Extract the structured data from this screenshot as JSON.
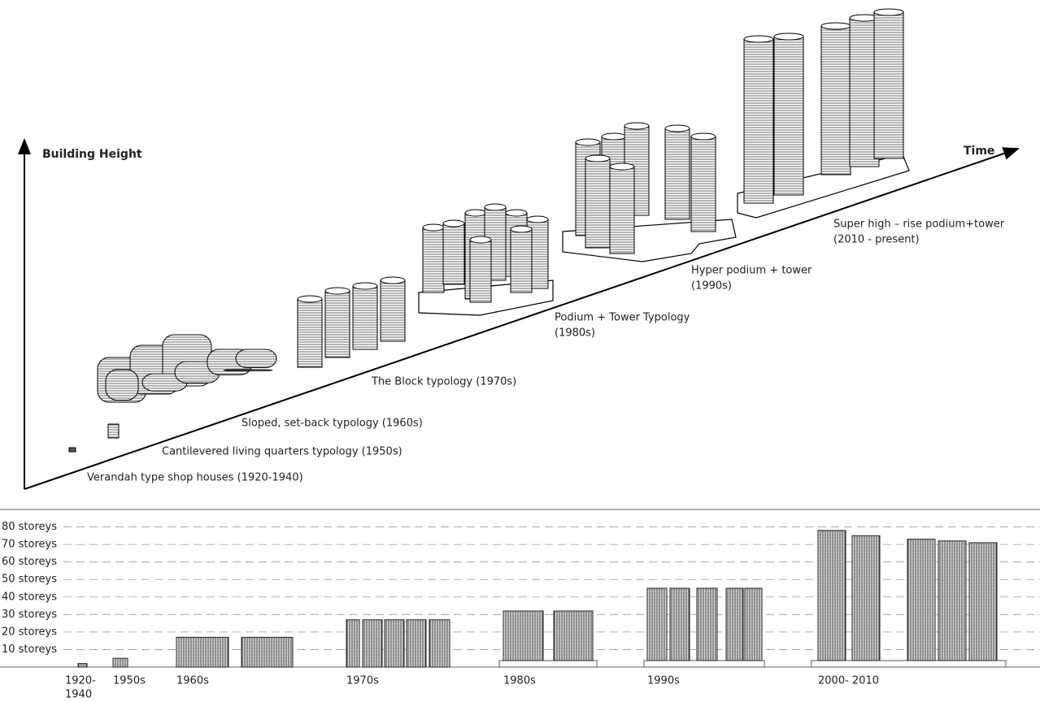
{
  "illustration": {
    "y_axis_label": "Building Height",
    "x_axis_label": "Time",
    "typologies": [
      {
        "lines": [
          "Verandah type shop houses (1920-1940)"
        ]
      },
      {
        "lines": [
          "Cantilevered living quarters typology (1950s)"
        ]
      },
      {
        "lines": [
          "Sloped, set-back typology (1960s)"
        ]
      },
      {
        "lines": [
          "The Block typology (1970s)"
        ]
      },
      {
        "lines": [
          "Podium + Tower Typology",
          "(1980s)"
        ]
      },
      {
        "lines": [
          "Hyper podium + tower",
          "(1990s)"
        ]
      },
      {
        "lines": [
          "Super high – rise podium+tower",
          "(2010 - present)"
        ]
      }
    ]
  },
  "height_chart": {
    "ylim": [
      0,
      90
    ],
    "yticks": [
      {
        "value": 10,
        "label": "10 storeys"
      },
      {
        "value": 20,
        "label": "20 storeys"
      },
      {
        "value": 30,
        "label": "30 storeys"
      },
      {
        "value": 40,
        "label": "40 storeys"
      },
      {
        "value": 50,
        "label": "50 storeys"
      },
      {
        "value": 60,
        "label": "60 storeys"
      },
      {
        "value": 70,
        "label": "70 storeys"
      },
      {
        "value": 80,
        "label": "80 storeys"
      }
    ],
    "groups": [
      {
        "label": [
          "1920-",
          "1940"
        ],
        "values": [
          2
        ],
        "podium": false
      },
      {
        "label": [
          "1950s"
        ],
        "values": [
          5
        ],
        "podium": false
      },
      {
        "label": [
          "1960s"
        ],
        "values": [
          17,
          17
        ],
        "podium": false
      },
      {
        "label": [
          "1970s"
        ],
        "values": [
          27,
          27,
          27,
          27,
          27
        ],
        "podium": false
      },
      {
        "label": [
          "1980s"
        ],
        "values": [
          32,
          32
        ],
        "podium": true
      },
      {
        "label": [
          "1990s"
        ],
        "values": [
          45,
          45,
          45,
          45,
          45
        ],
        "podium": true
      },
      {
        "label": [
          "2000- 2010"
        ],
        "values": [
          78,
          75,
          73,
          72,
          71
        ],
        "podium": true
      }
    ]
  }
}
